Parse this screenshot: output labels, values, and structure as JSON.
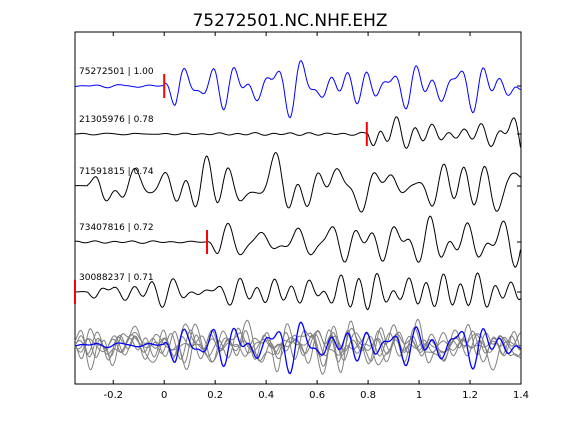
{
  "chart_data": {
    "type": "line",
    "title": "75272501.NC.NHF.EHZ",
    "xlabel": "",
    "ylabel": "",
    "xlim": [
      -0.35,
      1.4
    ],
    "xticks": [
      -0.2,
      0,
      0.2,
      0.4,
      0.6,
      0.8,
      1,
      1.2,
      1.4
    ],
    "xtick_labels": [
      "-0.2",
      "0",
      "0.2",
      "0.4",
      "0.6",
      "0.8",
      "1",
      "1.2",
      "1.4"
    ],
    "grid": false,
    "colors": {
      "master": "#0000ff",
      "trace": "#000000",
      "pick": "#ff0000",
      "stack": "#808080"
    },
    "series": [
      {
        "label": "75272501 | 1.00",
        "pick_time": 0.0,
        "color": "#0000ff",
        "master": true
      },
      {
        "label": "21305976 | 0.78",
        "pick_time": 0.795,
        "color": "#000000"
      },
      {
        "label": "71591815 | 0.74",
        "pick_time": null,
        "color": "#000000"
      },
      {
        "label": "73407816 | 0.72",
        "pick_time": 0.168,
        "color": "#000000"
      },
      {
        "label": "30088237 | 0.71",
        "pick_time": -0.35,
        "color": "#000000"
      }
    ],
    "stack_panel": {
      "overlay_colors": [
        "#0000ff",
        "#808080"
      ]
    }
  }
}
